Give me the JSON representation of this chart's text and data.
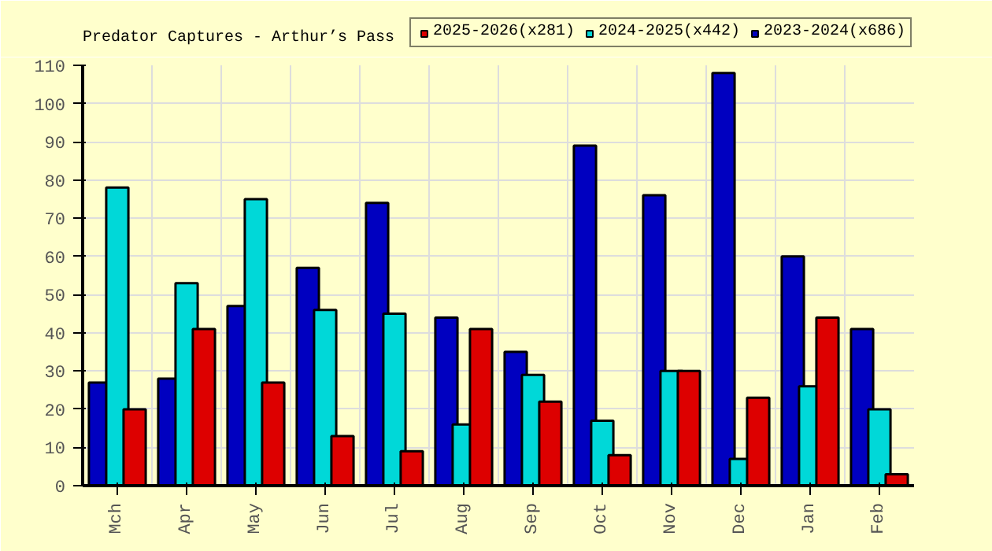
{
  "chart_data": {
    "type": "bar",
    "title": "Predator Captures - Arthur’s Pass",
    "categories": [
      "Mch",
      "Apr",
      "May",
      "Jun",
      "Jul",
      "Aug",
      "Sep",
      "Oct",
      "Nov",
      "Dec",
      "Jan",
      "Feb"
    ],
    "series": [
      {
        "name": "2025-2026(x281)",
        "color": "#dd0000",
        "values": [
          20,
          41,
          27,
          13,
          9,
          41,
          22,
          8,
          30,
          23,
          44,
          3
        ]
      },
      {
        "name": "2024-2025(x442)",
        "color": "#00d8d8",
        "values": [
          78,
          53,
          75,
          46,
          45,
          16,
          29,
          17,
          30,
          7,
          26,
          20
        ]
      },
      {
        "name": "2023-2024(x686)",
        "color": "#0000c0",
        "values": [
          27,
          28,
          47,
          57,
          74,
          44,
          35,
          89,
          76,
          108,
          60,
          41
        ]
      }
    ],
    "ylim": [
      0,
      110
    ],
    "yticks": [
      0,
      10,
      20,
      30,
      40,
      50,
      60,
      70,
      80,
      90,
      100,
      110
    ],
    "grid": true,
    "legend": "top right"
  }
}
